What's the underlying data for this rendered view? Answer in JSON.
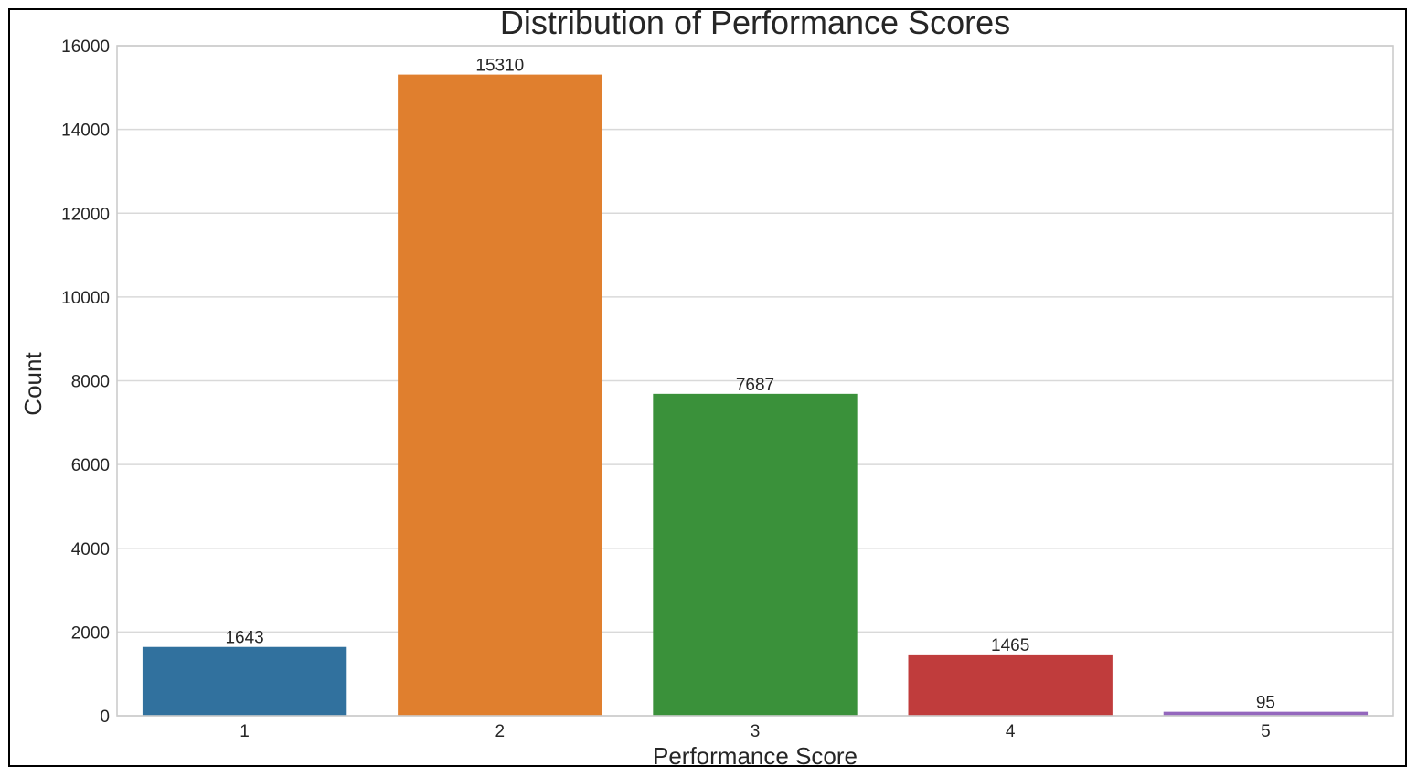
{
  "chart_data": {
    "type": "bar",
    "title": "Distribution of Performance Scores",
    "xlabel": "Performance Score",
    "ylabel": "Count",
    "categories": [
      "1",
      "2",
      "3",
      "4",
      "5"
    ],
    "values": [
      1643,
      15310,
      7687,
      1465,
      95
    ],
    "value_labels": [
      "1643",
      "15310",
      "7687",
      "1465",
      "95"
    ],
    "colors": [
      "#31719e",
      "#e07f2e",
      "#3a913a",
      "#c03c3c",
      "#9467bd"
    ],
    "ylim": [
      0,
      16000
    ],
    "yticks": [
      0,
      2000,
      4000,
      6000,
      8000,
      10000,
      12000,
      14000,
      16000
    ],
    "ytick_labels": [
      "0",
      "2000",
      "4000",
      "6000",
      "8000",
      "10000",
      "12000",
      "14000",
      "16000"
    ],
    "grid": "horizontal",
    "legend": "none"
  }
}
